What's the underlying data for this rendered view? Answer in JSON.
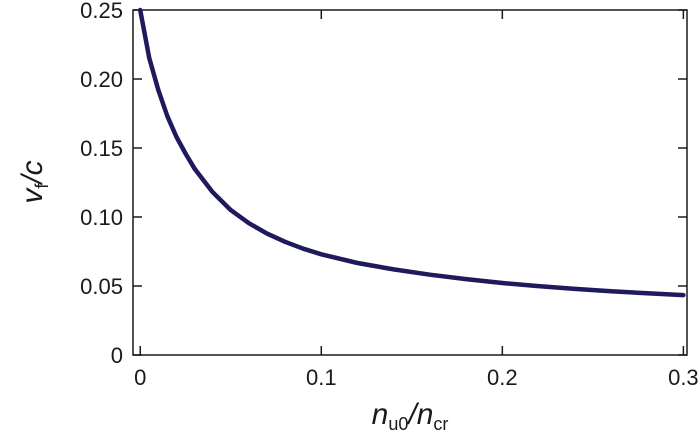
{
  "chart_data": {
    "type": "line",
    "title": "",
    "xlabel": {
      "main": "n",
      "sub": "u0",
      "sep": "/",
      "main2": "n",
      "sub2": "cr"
    },
    "ylabel": {
      "main": "v",
      "sub": "f",
      "sep": "/",
      "main2": "c"
    },
    "xlim": [
      -0.004,
      0.302
    ],
    "ylim": [
      0,
      0.25
    ],
    "xticks": [
      0,
      0.1,
      0.2,
      0.3
    ],
    "xtick_labels": [
      "0",
      "0.1",
      "0.2",
      "0.3"
    ],
    "yticks": [
      0,
      0.05,
      0.1,
      0.15,
      0.2,
      0.25
    ],
    "ytick_labels": [
      "0",
      "0.05",
      "0.10",
      "0.15",
      "0.20",
      "0.25"
    ],
    "grid": false,
    "series": [
      {
        "color": "#1f1a5c",
        "x": [
          0,
          0.005,
          0.01,
          0.015,
          0.02,
          0.025,
          0.03,
          0.04,
          0.05,
          0.06,
          0.07,
          0.08,
          0.09,
          0.1,
          0.12,
          0.14,
          0.16,
          0.18,
          0.2,
          0.22,
          0.24,
          0.26,
          0.28,
          0.3
        ],
        "y": [
          0.25,
          0.215,
          0.192,
          0.173,
          0.158,
          0.146,
          0.135,
          0.118,
          0.105,
          0.0955,
          0.088,
          0.082,
          0.077,
          0.073,
          0.0667,
          0.062,
          0.0582,
          0.055,
          0.0522,
          0.0499,
          0.0479,
          0.0462,
          0.0447,
          0.0434
        ]
      }
    ]
  }
}
